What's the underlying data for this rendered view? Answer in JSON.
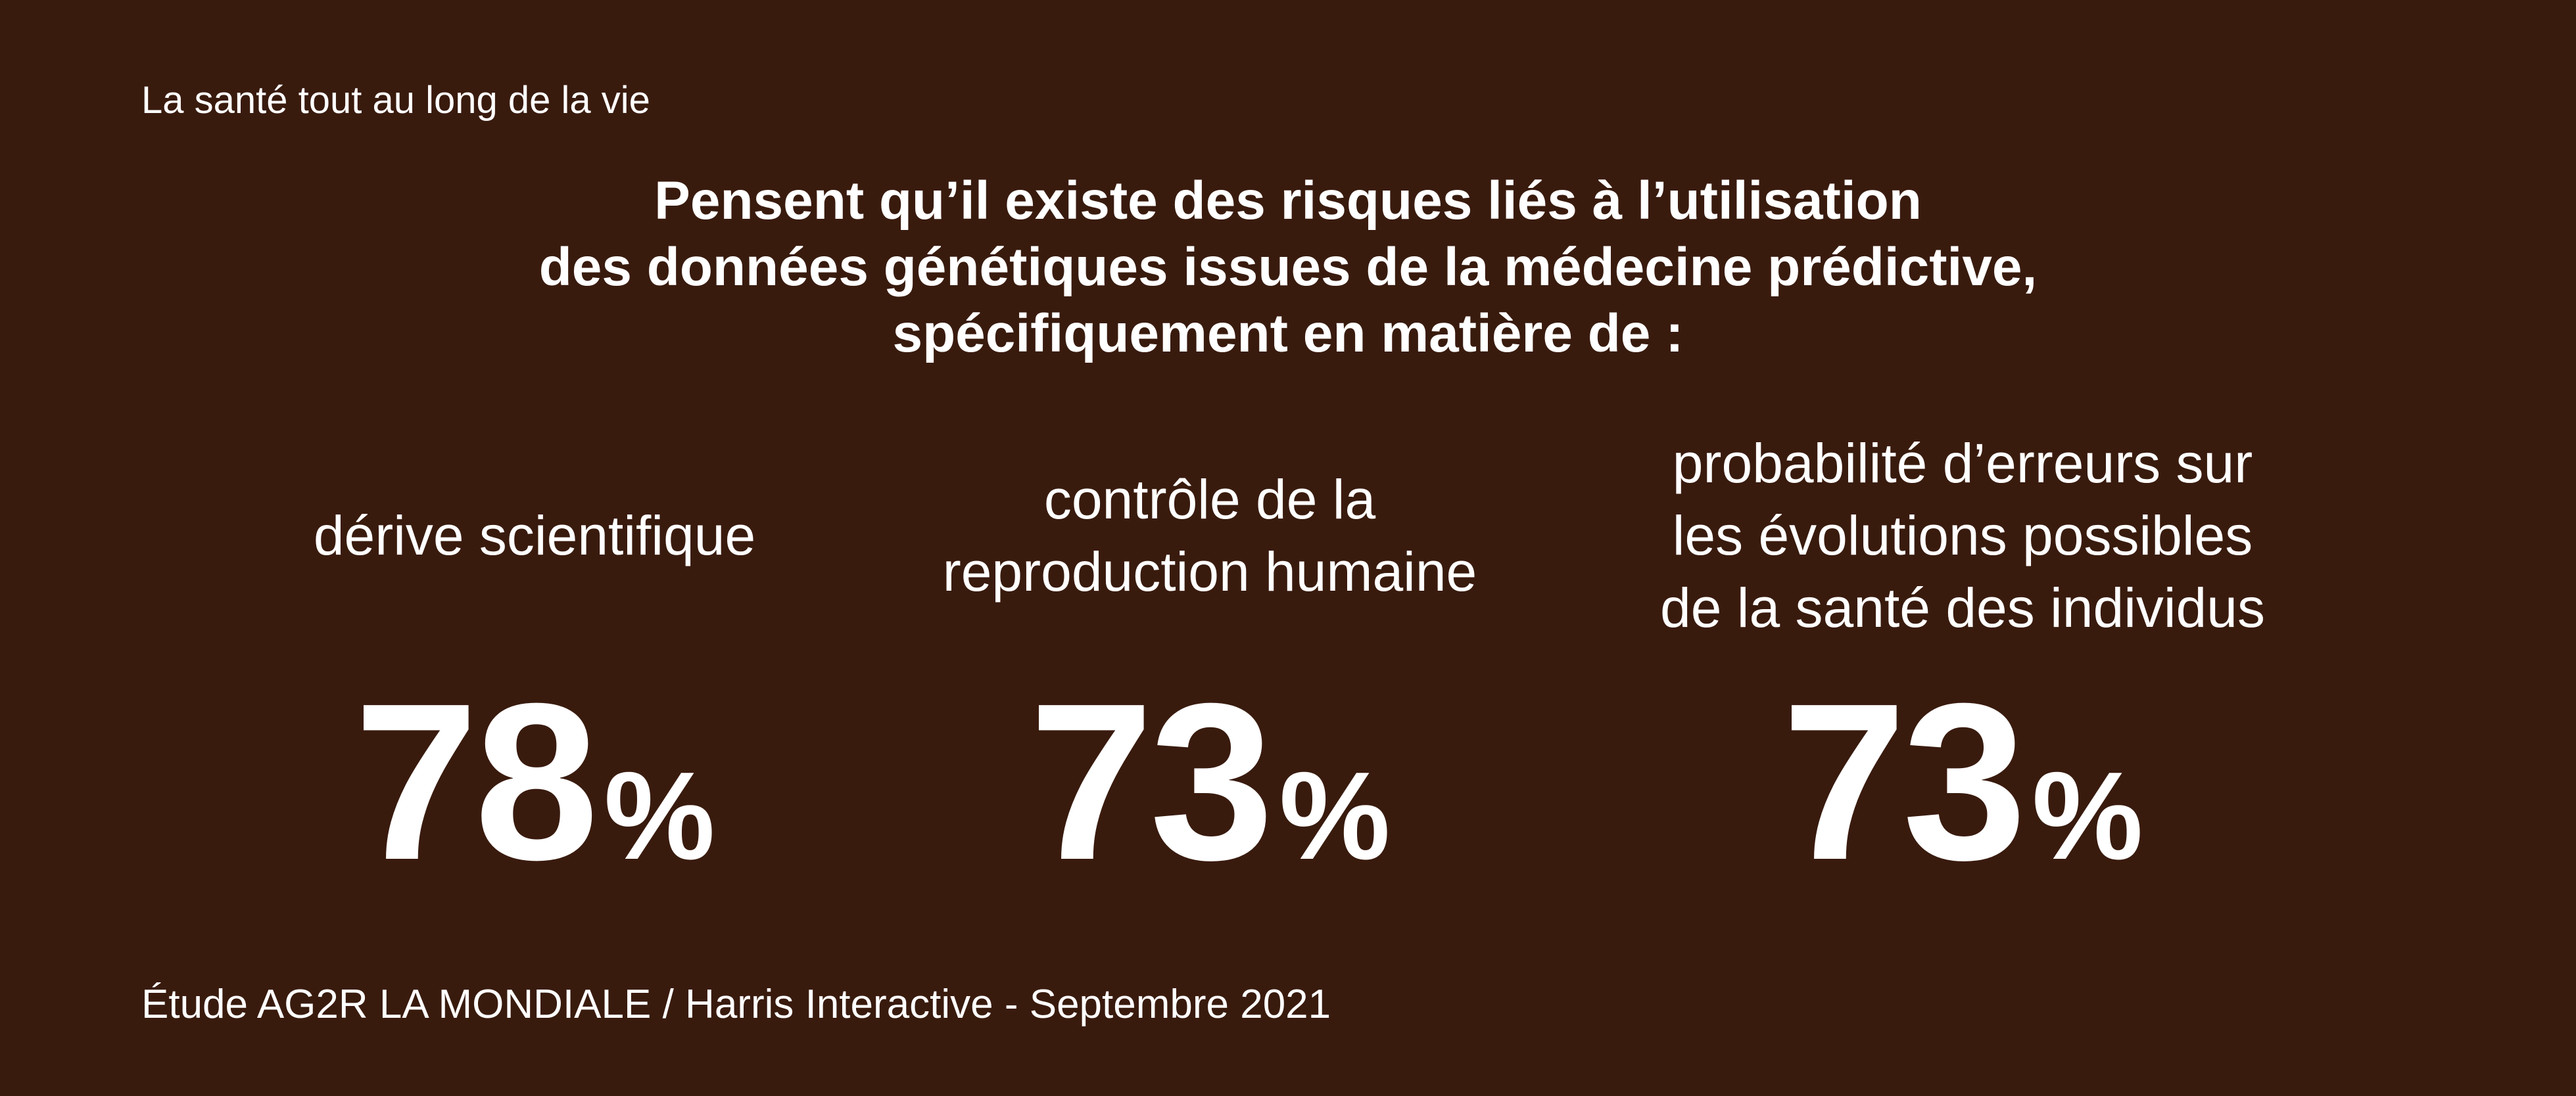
{
  "kicker": "La santé tout au long de la vie",
  "headline": {
    "line1": "Pensent qu’il existe des risques liés à l’utilisation",
    "line2": "des données génétiques issues de la médecine prédictive,",
    "line3": "spécifiquement en matière de :"
  },
  "stats": [
    {
      "label_lines": [
        "dérive scientifique"
      ],
      "value": "78",
      "unit": "%"
    },
    {
      "label_lines": [
        "contrôle de la",
        "reproduction humaine"
      ],
      "value": "73",
      "unit": "%"
    },
    {
      "label_lines": [
        "probabilité d’erreurs sur",
        "les évolutions possibles",
        "de la santé des individus"
      ],
      "value": "73",
      "unit": "%"
    }
  ],
  "source": "Étude AG2R LA MONDIALE / Harris Interactive - Septembre 2021",
  "colors": {
    "background": "#391b0e",
    "text": "#ffffff"
  }
}
